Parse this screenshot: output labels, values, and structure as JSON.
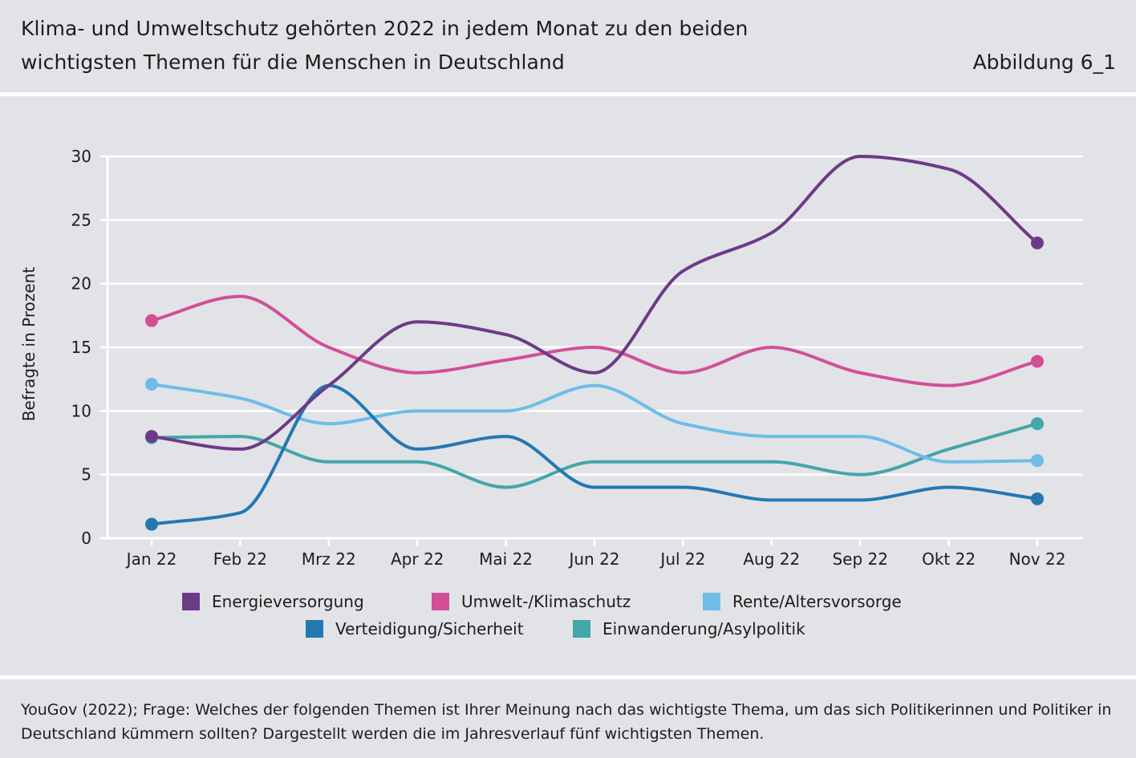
{
  "header": {
    "title_line1": "Klima- und Umweltschutz gehörten 2022 in jedem Monat zu den beiden",
    "title_line2": "wichtigsten Themen für die Menschen in Deutschland",
    "figure_label": "Abbildung 6_1"
  },
  "footer": {
    "source": "YouGov (2022); Frage: Welches der folgenden Themen ist Ihrer Meinung nach das wichtigste Thema, um das sich Politikerinnen und Politiker in Deutschland kümmern sollten? Dargestellt werden die im Jahresverlauf fünf wichtigsten Themen."
  },
  "chart_data": {
    "type": "line",
    "title": "Klima- und Umweltschutz gehörten 2022 in jedem Monat zu den beiden wichtigsten Themen für die Menschen in Deutschland",
    "xlabel": "",
    "ylabel": "Befragte in Prozent",
    "ylim": [
      0,
      30
    ],
    "yticks": [
      "0",
      "5",
      "10",
      "15",
      "20",
      "25",
      "30"
    ],
    "grid": true,
    "legend_position": "bottom",
    "categories": [
      "Jan 22",
      "Feb 22",
      "Mrz 22",
      "Apr 22",
      "Mai 22",
      "Jun 22",
      "Jul 22",
      "Aug 22",
      "Sep 22",
      "Okt 22",
      "Nov 22"
    ],
    "series": [
      {
        "name": "Energieversorgung",
        "color": "#6d3a88",
        "values": [
          8,
          7,
          12,
          17,
          16,
          13,
          21,
          24,
          30,
          29,
          23.2
        ]
      },
      {
        "name": "Umwelt-/Klimaschutz",
        "color": "#d24f98",
        "values": [
          17.1,
          19,
          15,
          13,
          14,
          15,
          13,
          15,
          13,
          12,
          13.9
        ]
      },
      {
        "name": "Rente/Altersvorsorge",
        "color": "#6dbde8",
        "values": [
          12.1,
          11,
          9,
          10,
          10,
          12,
          9,
          8,
          8,
          6,
          6.1
        ]
      },
      {
        "name": "Verteidigung/Sicherheit",
        "color": "#2478b2",
        "values": [
          1.1,
          2,
          12,
          7,
          8,
          4,
          4,
          3,
          3,
          4,
          3.1
        ]
      },
      {
        "name": "Einwanderung/Asylpolitik",
        "color": "#43a6a9",
        "values": [
          7.9,
          8,
          6,
          6,
          4,
          6,
          6,
          6,
          5,
          7,
          9
        ]
      }
    ]
  }
}
